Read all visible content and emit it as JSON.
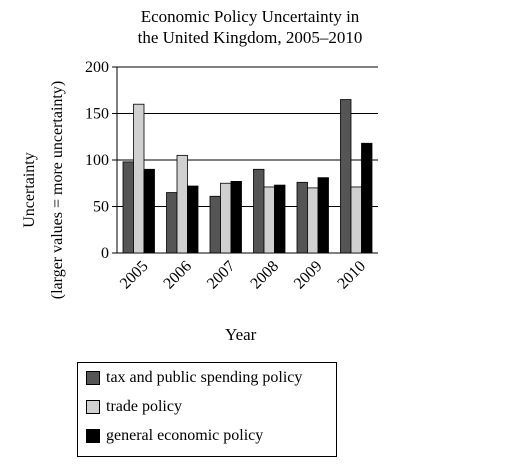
{
  "chart_data": {
    "type": "bar",
    "title_lines": [
      "Economic Policy Uncertainty in",
      "the United Kingdom, 2005–2010"
    ],
    "xlabel": "Year",
    "ylabel_lines": [
      "Uncertainty",
      "(larger values = more uncertainty)"
    ],
    "ylim": [
      0,
      200
    ],
    "yticks": [
      0,
      50,
      100,
      150,
      200
    ],
    "grid": "horizontal",
    "categories": [
      "2005",
      "2006",
      "2007",
      "2008",
      "2009",
      "2010"
    ],
    "series": [
      {
        "name": "tax and public spending policy",
        "color": "#555555",
        "values": [
          98,
          65,
          61,
          90,
          76,
          165
        ]
      },
      {
        "name": "trade policy",
        "color": "#d0d0d0",
        "values": [
          160,
          105,
          75,
          71,
          70,
          71
        ]
      },
      {
        "name": "general economic policy",
        "color": "#000000",
        "values": [
          90,
          72,
          77,
          73,
          81,
          118
        ]
      }
    ]
  }
}
